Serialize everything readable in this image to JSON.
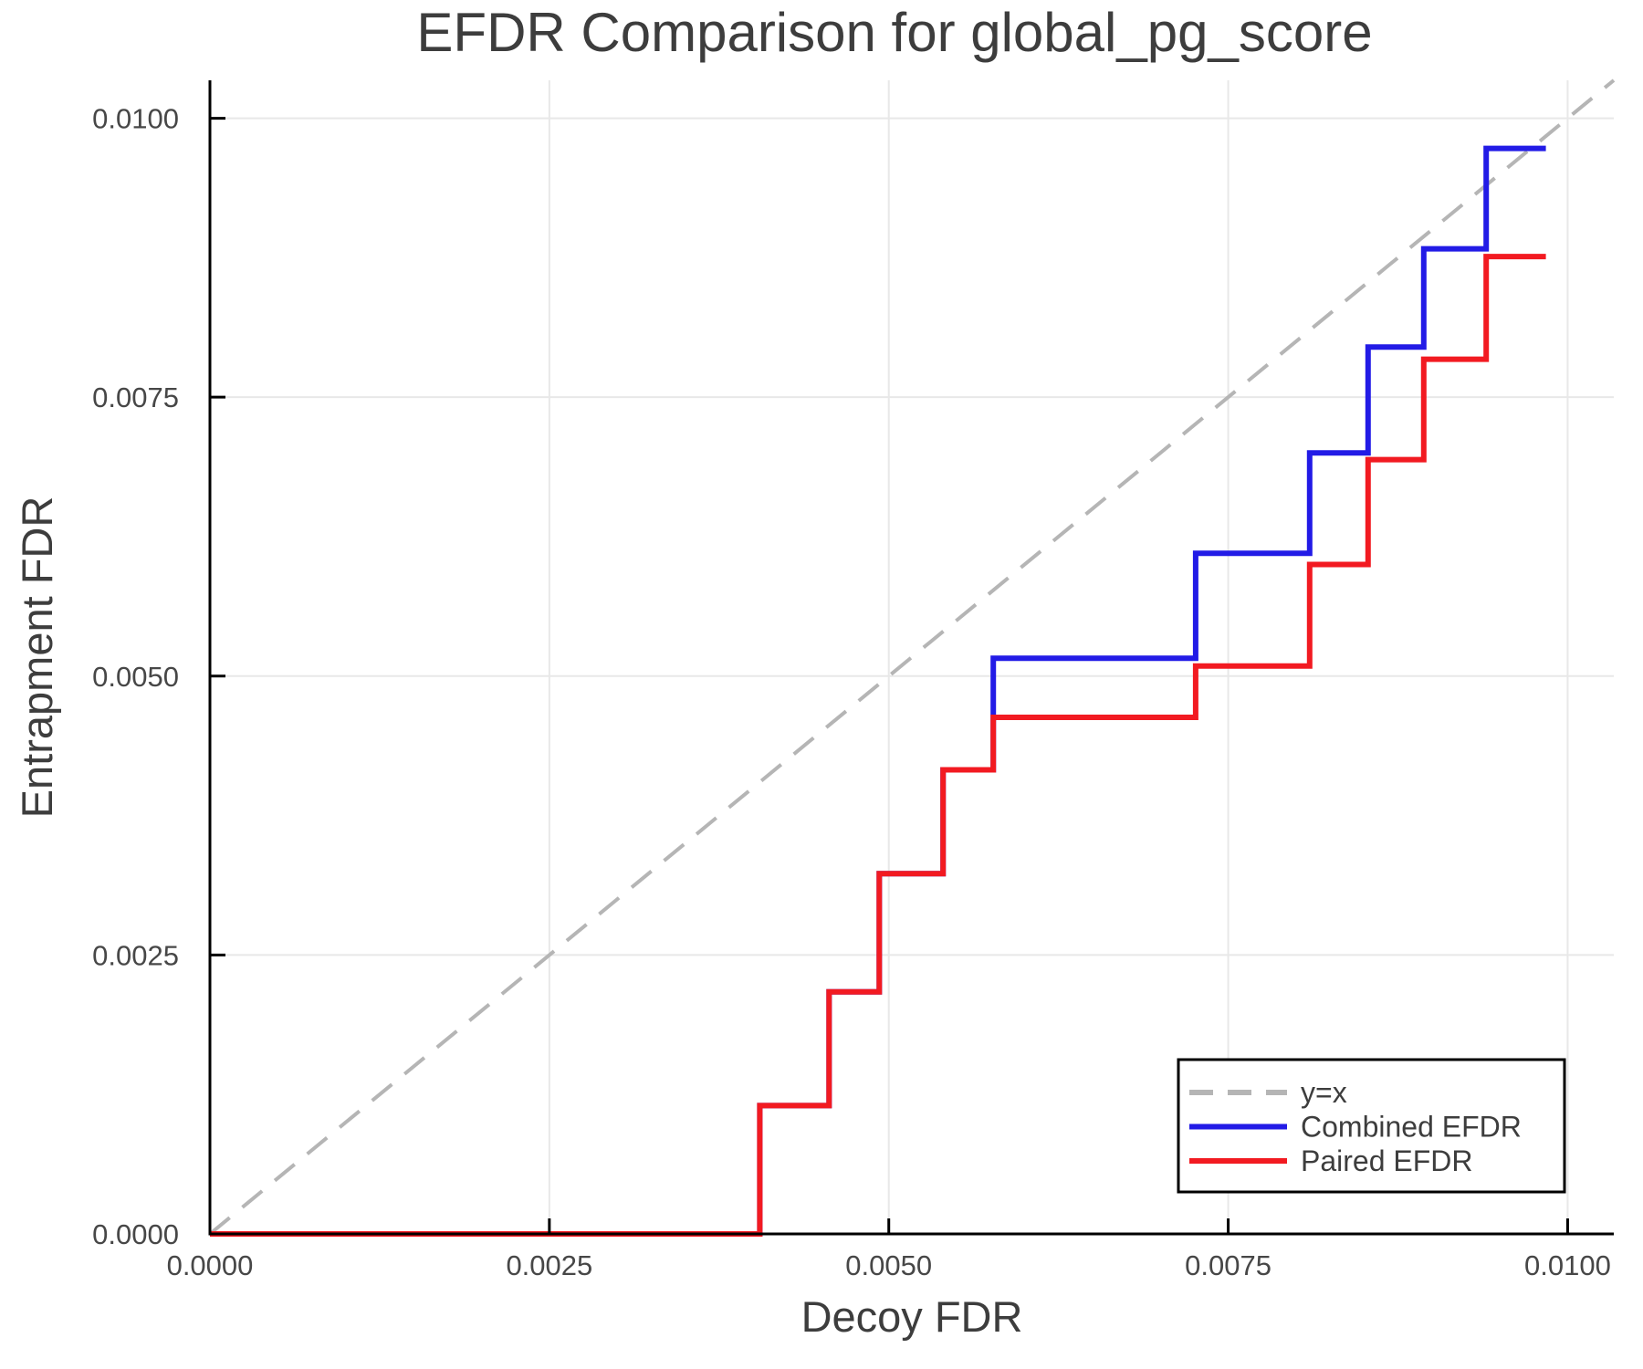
{
  "figure": {
    "background": "#ffffff"
  },
  "chart_data": {
    "type": "line",
    "subtype": "step",
    "title": "EFDR Comparison for global_pg_score",
    "xlabel": "Decoy FDR",
    "ylabel": "Entrapment FDR",
    "xlim": [
      0,
      0.01034
    ],
    "ylim": [
      0,
      0.01034
    ],
    "grid": true,
    "grid_color": "#e8e8e8",
    "axis_color": "#000000",
    "text_color": "#3d3d3d",
    "x_ticks": [
      {
        "value": 0.0,
        "label": "0.0000"
      },
      {
        "value": 0.0025,
        "label": "0.0025"
      },
      {
        "value": 0.005,
        "label": "0.0050"
      },
      {
        "value": 0.0075,
        "label": "0.0075"
      },
      {
        "value": 0.01,
        "label": "0.0100"
      }
    ],
    "y_ticks": [
      {
        "value": 0.0,
        "label": "0.0000"
      },
      {
        "value": 0.0025,
        "label": "0.0025"
      },
      {
        "value": 0.005,
        "label": "0.0050"
      },
      {
        "value": 0.0075,
        "label": "0.0075"
      },
      {
        "value": 0.01,
        "label": "0.0100"
      }
    ],
    "reference_line": {
      "name": "y=x",
      "color": "#b5b5b5",
      "dashed": true,
      "points": [
        [
          0,
          0
        ],
        [
          0.01034,
          0.01034
        ]
      ]
    },
    "series": [
      {
        "name": "Combined EFDR",
        "color": "#221be6",
        "points": [
          [
            0.0,
            0.0
          ],
          [
            0.00405,
            0.0
          ],
          [
            0.00405,
            0.00115
          ],
          [
            0.00456,
            0.00115
          ],
          [
            0.00456,
            0.00217
          ],
          [
            0.00493,
            0.00217
          ],
          [
            0.00493,
            0.00323
          ],
          [
            0.0054,
            0.00323
          ],
          [
            0.0054,
            0.00416
          ],
          [
            0.00577,
            0.00416
          ],
          [
            0.00577,
            0.00516
          ],
          [
            0.00726,
            0.00516
          ],
          [
            0.00726,
            0.0061
          ],
          [
            0.0081,
            0.0061
          ],
          [
            0.0081,
            0.007
          ],
          [
            0.00853,
            0.007
          ],
          [
            0.00853,
            0.00795
          ],
          [
            0.00894,
            0.00795
          ],
          [
            0.00894,
            0.00883
          ],
          [
            0.0094,
            0.00883
          ],
          [
            0.0094,
            0.00973
          ],
          [
            0.00984,
            0.00973
          ]
        ]
      },
      {
        "name": "Paired EFDR",
        "color": "#f21a21",
        "points": [
          [
            0.0,
            0.0
          ],
          [
            0.00405,
            0.0
          ],
          [
            0.00405,
            0.00115
          ],
          [
            0.00456,
            0.00115
          ],
          [
            0.00456,
            0.00217
          ],
          [
            0.00493,
            0.00217
          ],
          [
            0.00493,
            0.00323
          ],
          [
            0.0054,
            0.00323
          ],
          [
            0.0054,
            0.00416
          ],
          [
            0.00577,
            0.00416
          ],
          [
            0.00577,
            0.00463
          ],
          [
            0.00726,
            0.00463
          ],
          [
            0.00726,
            0.00509
          ],
          [
            0.0081,
            0.00509
          ],
          [
            0.0081,
            0.006
          ],
          [
            0.00853,
            0.006
          ],
          [
            0.00853,
            0.00694
          ],
          [
            0.00894,
            0.00694
          ],
          [
            0.00894,
            0.00784
          ],
          [
            0.0094,
            0.00784
          ],
          [
            0.0094,
            0.00876
          ],
          [
            0.00984,
            0.00876
          ]
        ]
      }
    ],
    "legend": {
      "position": "bottom-right",
      "entries": [
        {
          "label": "y=x",
          "color": "#b5b5b5",
          "dashed": true
        },
        {
          "label": "Combined EFDR",
          "color": "#221be6",
          "dashed": false
        },
        {
          "label": "Paired EFDR",
          "color": "#f21a21",
          "dashed": false
        }
      ]
    }
  }
}
